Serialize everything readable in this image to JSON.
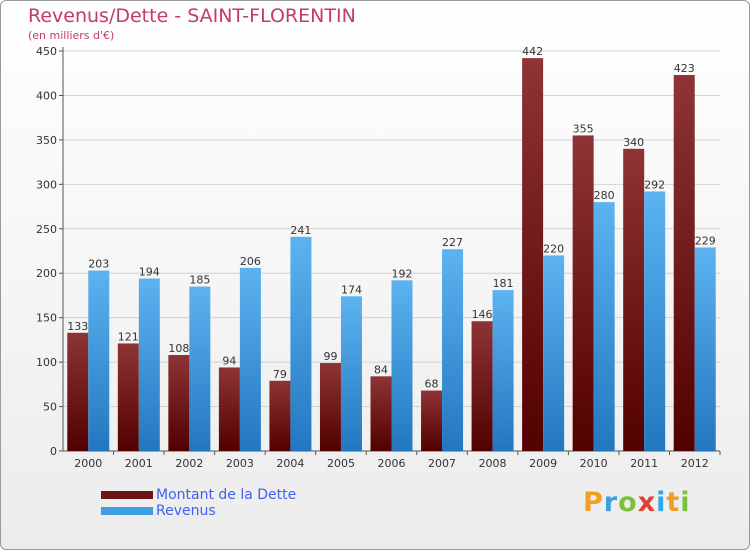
{
  "title": "Revenus/Dette - SAINT-FLORENTIN",
  "subtitle": "(en milliers d'€)",
  "chart_data": {
    "type": "bar",
    "title": "Revenus/Dette - SAINT-FLORENTIN",
    "ylabel": "(en milliers d'€)",
    "xlabel": "",
    "ylim": [
      0,
      450
    ],
    "yticks": [
      0,
      50,
      100,
      150,
      200,
      250,
      300,
      350,
      400,
      450
    ],
    "grid": true,
    "legend_position": "bottom-left",
    "categories": [
      "2000",
      "2001",
      "2002",
      "2003",
      "2004",
      "2005",
      "2006",
      "2007",
      "2008",
      "2009",
      "2010",
      "2011",
      "2012"
    ],
    "series": [
      {
        "name": "Montant de la Dette",
        "color": "#6e1517",
        "values": [
          133,
          121,
          108,
          94,
          79,
          99,
          84,
          68,
          146,
          442,
          355,
          340,
          423
        ]
      },
      {
        "name": "Revenus",
        "color": "#3d9de3",
        "values": [
          203,
          194,
          185,
          206,
          241,
          174,
          192,
          227,
          181,
          220,
          280,
          292,
          229
        ]
      }
    ]
  },
  "legend": [
    {
      "label": "Montant de la Dette",
      "color": "#6e1517"
    },
    {
      "label": "Revenus",
      "color": "#3d9de3"
    }
  ],
  "logo": {
    "p": "P",
    "r": "r",
    "o": "o",
    "x": "x",
    "i1": "i",
    "t": "t",
    "i2": "i"
  }
}
